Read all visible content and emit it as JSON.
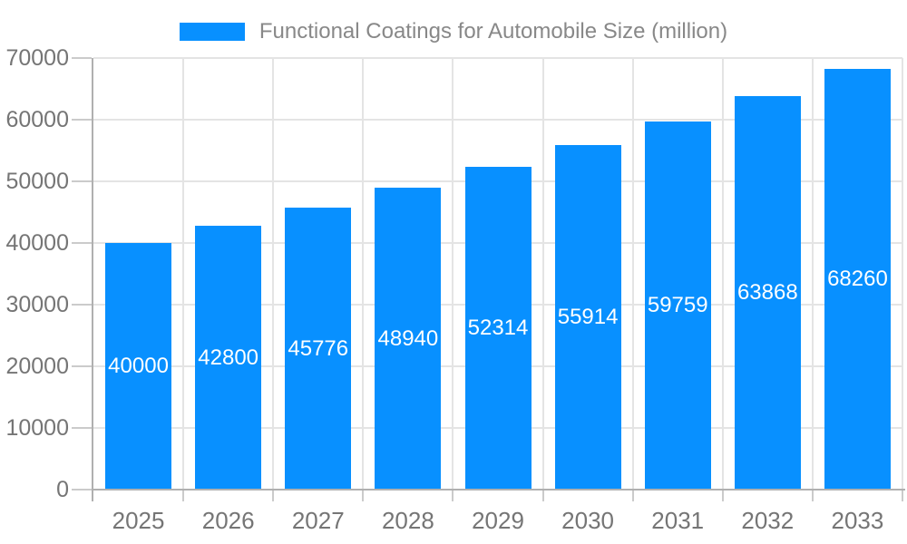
{
  "chart_data": {
    "type": "bar",
    "title": "Functional Coatings for Automobile Size (million)",
    "categories": [
      "2025",
      "2026",
      "2027",
      "2028",
      "2029",
      "2030",
      "2031",
      "2032",
      "2033"
    ],
    "series": [
      {
        "name": "Functional Coatings for Automobile Size (million)",
        "values": [
          40000,
          42800,
          45776,
          48940,
          52314,
          55914,
          59759,
          63868,
          68260
        ]
      }
    ],
    "value_labels": [
      "40000",
      "42800",
      "45776",
      "48940",
      "52314",
      "55914",
      "59759",
      "63868",
      "68260"
    ],
    "xlabel": "",
    "ylabel": "",
    "ylim": [
      0,
      70000
    ],
    "ytick_step": 10000,
    "yticks": [
      "0",
      "10000",
      "20000",
      "30000",
      "40000",
      "50000",
      "60000",
      "70000"
    ],
    "grid": true,
    "legend_position": "top",
    "value_labels_position": "inside-center",
    "colors": {
      "bar": "#0890FF",
      "value_label_text": "#FFFFFF",
      "gridline": "#E4E4E4",
      "axis_line": "#B0B0B0",
      "tick_line": "#CBCBCB",
      "axis_text": "#757575",
      "title_text": "#888888",
      "background": "#FFFFFF"
    }
  }
}
